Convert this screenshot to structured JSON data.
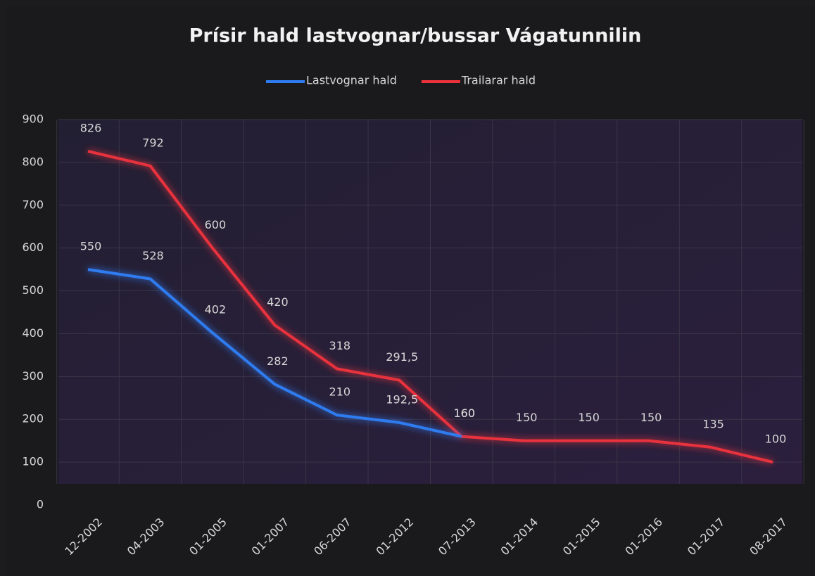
{
  "chart_data": {
    "type": "line",
    "title": "Prísir hald lastvognar/bussar Vágatunnilin",
    "categories": [
      "12-2002",
      "04-2003",
      "01-2005",
      "01-2007",
      "06-2007",
      "01-2012",
      "07-2013",
      "01-2014",
      "01-2015",
      "01-2016",
      "01-2017",
      "08-2017"
    ],
    "series": [
      {
        "name": "Lastvognar hald",
        "color": "#2f7bf0",
        "values": [
          550,
          528,
          402,
          282,
          210,
          192.5,
          160,
          null,
          null,
          null,
          null,
          null
        ],
        "value_labels": [
          "550",
          "528",
          "402",
          "282",
          "210",
          "192,5",
          "160",
          null,
          null,
          null,
          null,
          null
        ]
      },
      {
        "name": "Trailarar hald",
        "color": "#e8323c",
        "values": [
          826,
          792,
          600,
          420,
          318,
          291.5,
          160,
          150,
          150,
          150,
          135,
          100
        ],
        "value_labels": [
          "826",
          "792",
          "600",
          "420",
          "318",
          "291,5",
          "160",
          "150",
          "150",
          "150",
          "135",
          "100"
        ]
      }
    ],
    "ylim": [
      0,
      900
    ],
    "yticks": [
      0,
      100,
      200,
      300,
      400,
      500,
      600,
      700,
      800,
      900
    ],
    "grid": true,
    "legend": "top"
  }
}
